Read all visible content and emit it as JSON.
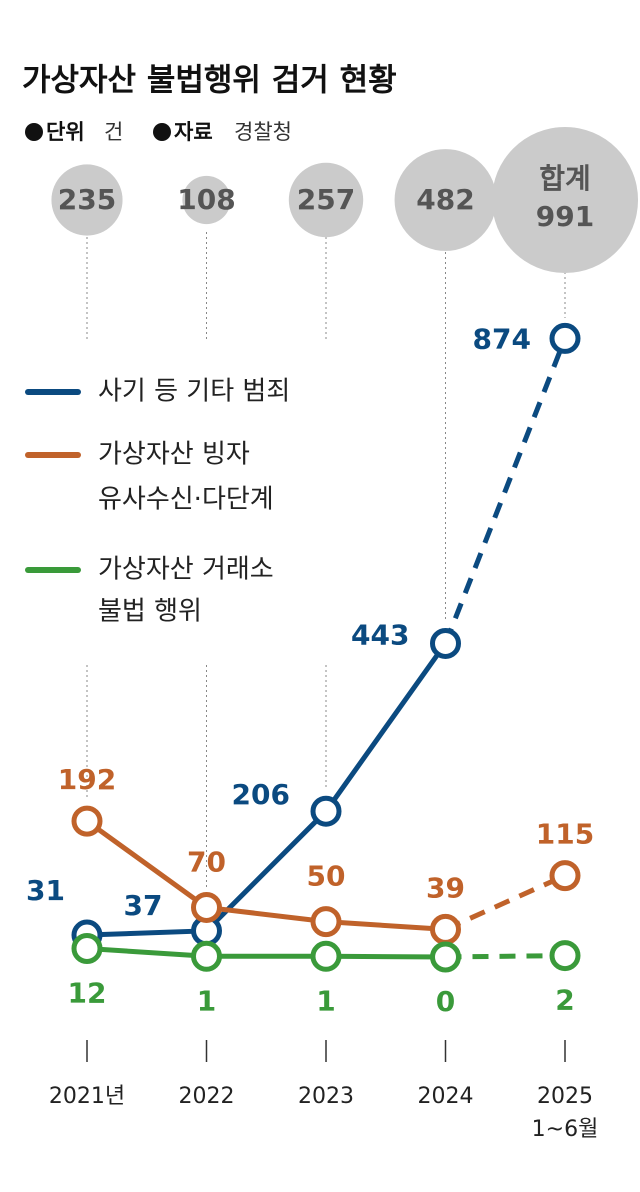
{
  "chart_data": {
    "type": "line",
    "title": "가상자산 불법행위 검거 현황",
    "unit_label": "단위",
    "unit": "건",
    "source_label": "자료",
    "source": "경찰청",
    "categories": [
      "2021년",
      "2022",
      "2023",
      "2024",
      "2025"
    ],
    "category_sublabels": [
      null,
      null,
      null,
      null,
      "1~6월"
    ],
    "totals": [
      235,
      108,
      257,
      482,
      991
    ],
    "total_label": "합계",
    "totals_color": "#cbcbcb",
    "series": [
      {
        "name": [
          "사기 등 기타 범죄"
        ],
        "color": "#0b4a80",
        "values": [
          31,
          37,
          206,
          443,
          874
        ]
      },
      {
        "name": [
          "가상자산 빙자",
          "유사수신·다단계"
        ],
        "color": "#c0622a",
        "values": [
          192,
          70,
          50,
          39,
          115
        ]
      },
      {
        "name": [
          "가상자산 거래소",
          "불법 행위"
        ],
        "color": "#3a9a3a",
        "values": [
          12,
          1,
          1,
          0,
          2
        ]
      }
    ],
    "dashed_last_segment": true,
    "ylim": [
      0,
      900
    ]
  }
}
